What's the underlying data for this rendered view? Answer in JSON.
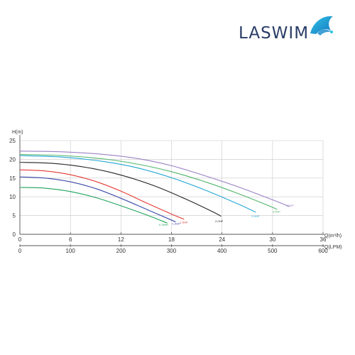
{
  "brand": {
    "name": "LASWIM",
    "colors": {
      "text": "#2a3d67",
      "mark_light": "#2ec4e6",
      "mark_dark": "#1776bf"
    }
  },
  "chart_data": {
    "type": "line",
    "ylabel": "H(m)",
    "xlabel_primary": "Q(m³/h)",
    "xlabel_secondary": "Q(LPM)",
    "xlim": [
      0,
      36
    ],
    "ylim": [
      0,
      25
    ],
    "x_ticks": [
      "0",
      "6",
      "12",
      "18",
      "24",
      "30",
      "36"
    ],
    "x2_ticks": [
      "0",
      "100",
      "200",
      "300",
      "400",
      "500",
      "600"
    ],
    "y_ticks": [
      "0",
      "5",
      "10",
      "15",
      "20",
      "25"
    ],
    "grid": true,
    "series": [
      {
        "name": "0.75HP",
        "color": "#1fa35a",
        "label_at": [
          16.5,
          2.3
        ],
        "points": [
          [
            0,
            12.5
          ],
          [
            3,
            12.3
          ],
          [
            6,
            11.4
          ],
          [
            9,
            9.8
          ],
          [
            12,
            7.6
          ],
          [
            15,
            5.2
          ],
          [
            17.5,
            3.0
          ]
        ]
      },
      {
        "name": "1.0HP",
        "color": "#3a4aa8",
        "label_at": [
          18.1,
          2.6
        ],
        "points": [
          [
            0,
            15.3
          ],
          [
            3,
            15.0
          ],
          [
            6,
            14.0
          ],
          [
            9,
            12.2
          ],
          [
            12,
            9.6
          ],
          [
            15,
            6.7
          ],
          [
            18,
            3.8
          ],
          [
            18.5,
            3.3
          ]
        ]
      },
      {
        "name": "1.5HP",
        "color": "#e53935",
        "label_at": [
          19.0,
          2.9
        ],
        "points": [
          [
            0,
            17.2
          ],
          [
            3,
            16.9
          ],
          [
            6,
            15.9
          ],
          [
            9,
            14.1
          ],
          [
            12,
            11.5
          ],
          [
            15,
            8.4
          ],
          [
            18,
            5.4
          ],
          [
            19.5,
            4.0
          ]
        ]
      },
      {
        "name": "2.0HP",
        "color": "#222222",
        "label_at": [
          23.2,
          3.2
        ],
        "points": [
          [
            0,
            19.2
          ],
          [
            4,
            18.9
          ],
          [
            8,
            17.8
          ],
          [
            12,
            15.8
          ],
          [
            16,
            12.9
          ],
          [
            20,
            9.1
          ],
          [
            23,
            5.9
          ],
          [
            23.9,
            4.8
          ]
        ]
      },
      {
        "name": "2.5HP",
        "color": "#22a6d6",
        "label_at": [
          27.5,
          4.5
        ],
        "points": [
          [
            0,
            21.0
          ],
          [
            5,
            20.6
          ],
          [
            10,
            19.4
          ],
          [
            14,
            17.7
          ],
          [
            18,
            15.1
          ],
          [
            22,
            11.8
          ],
          [
            26,
            8.0
          ],
          [
            28,
            5.9
          ]
        ]
      },
      {
        "name": "3.0HP",
        "color": "#52b56c",
        "label_at": [
          30.0,
          5.8
        ],
        "points": [
          [
            0,
            21.3
          ],
          [
            5,
            21.0
          ],
          [
            10,
            20.1
          ],
          [
            14,
            18.7
          ],
          [
            18,
            16.7
          ],
          [
            22,
            14.0
          ],
          [
            26,
            10.8
          ],
          [
            30,
            7.2
          ],
          [
            30.5,
            6.6
          ]
        ]
      },
      {
        "name": "3.5HP",
        "color": "#9a80c4",
        "label_at": [
          31.6,
          7.4
        ],
        "points": [
          [
            0,
            22.2
          ],
          [
            5,
            22.0
          ],
          [
            10,
            21.3
          ],
          [
            14,
            20.2
          ],
          [
            18,
            18.3
          ],
          [
            22,
            15.6
          ],
          [
            26,
            12.6
          ],
          [
            30,
            9.2
          ],
          [
            32,
            7.4
          ]
        ]
      }
    ]
  }
}
